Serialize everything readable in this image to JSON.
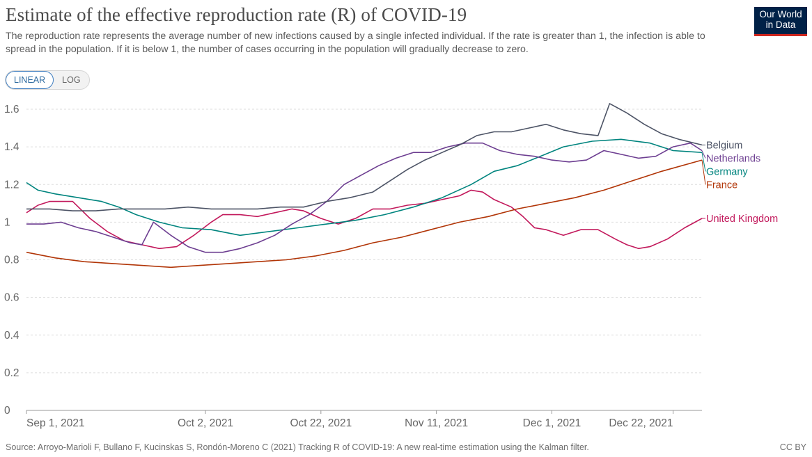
{
  "header": {
    "title": "Estimate of the effective reproduction rate (R) of COVID-19",
    "subtitle": "The reproduction rate represents the average number of new infections caused by a single infected individual. If the rate is greater than 1, the infection is able to spread in the population. If it is below 1, the number of cases occurring in the population will gradually decrease to zero.",
    "logo_line1": "Our World",
    "logo_line2": "in Data"
  },
  "controls": {
    "linear_label": "LINEAR",
    "log_label": "LOG",
    "selected": "linear"
  },
  "footer": {
    "source": "Source: Arroyo-Marioli F, Bullano F, Kucinskas S, Rondón-Moreno C (2021) Tracking R of COVID-19: A new real-time estimation using the Kalman filter.",
    "license": "CC BY"
  },
  "chart_data": {
    "type": "line",
    "x_start": "2021-09-01",
    "x_end": "2021-12-27",
    "x_tick_labels": [
      "Sep 1, 2021",
      "Oct 2, 2021",
      "Oct 22, 2021",
      "Nov 11, 2021",
      "Dec 1, 2021",
      "Dec 22, 2021"
    ],
    "x_tick_dates": [
      "2021-09-01",
      "2021-10-02",
      "2021-10-22",
      "2021-11-11",
      "2021-12-01",
      "2021-12-22"
    ],
    "ylim": [
      0,
      1.6
    ],
    "y_ticks": [
      0,
      0.2,
      0.4,
      0.6,
      0.8,
      1,
      1.2,
      1.4,
      1.6
    ],
    "y_tick_labels": [
      "0",
      "0.2",
      "0.4",
      "0.6",
      "0.8",
      "1",
      "1.2",
      "1.4",
      "1.6"
    ],
    "grid": "horizontal dashed",
    "legend": "series labels at right end of lines",
    "series": [
      {
        "name": "United Kingdom",
        "color": "#c2185b",
        "points": [
          [
            "2021-09-01",
            1.05
          ],
          [
            "2021-09-03",
            1.09
          ],
          [
            "2021-09-05",
            1.11
          ],
          [
            "2021-09-09",
            1.11
          ],
          [
            "2021-09-12",
            1.02
          ],
          [
            "2021-09-15",
            0.95
          ],
          [
            "2021-09-18",
            0.9
          ],
          [
            "2021-09-21",
            0.88
          ],
          [
            "2021-09-24",
            0.86
          ],
          [
            "2021-09-27",
            0.87
          ],
          [
            "2021-09-30",
            0.93
          ],
          [
            "2021-10-03",
            1.0
          ],
          [
            "2021-10-05",
            1.04
          ],
          [
            "2021-10-08",
            1.04
          ],
          [
            "2021-10-11",
            1.03
          ],
          [
            "2021-10-14",
            1.05
          ],
          [
            "2021-10-17",
            1.07
          ],
          [
            "2021-10-19",
            1.06
          ],
          [
            "2021-10-22",
            1.02
          ],
          [
            "2021-10-25",
            0.99
          ],
          [
            "2021-10-28",
            1.02
          ],
          [
            "2021-10-31",
            1.07
          ],
          [
            "2021-11-03",
            1.07
          ],
          [
            "2021-11-06",
            1.09
          ],
          [
            "2021-11-09",
            1.1
          ],
          [
            "2021-11-12",
            1.12
          ],
          [
            "2021-11-15",
            1.14
          ],
          [
            "2021-11-17",
            1.17
          ],
          [
            "2021-11-19",
            1.16
          ],
          [
            "2021-11-21",
            1.12
          ],
          [
            "2021-11-24",
            1.08
          ],
          [
            "2021-11-26",
            1.03
          ],
          [
            "2021-11-28",
            0.97
          ],
          [
            "2021-11-30",
            0.96
          ],
          [
            "2021-12-03",
            0.93
          ],
          [
            "2021-12-06",
            0.96
          ],
          [
            "2021-12-09",
            0.96
          ],
          [
            "2021-12-12",
            0.91
          ],
          [
            "2021-12-14",
            0.88
          ],
          [
            "2021-12-16",
            0.86
          ],
          [
            "2021-12-18",
            0.87
          ],
          [
            "2021-12-21",
            0.91
          ],
          [
            "2021-12-24",
            0.97
          ],
          [
            "2021-12-27",
            1.02
          ]
        ]
      },
      {
        "name": "France",
        "color": "#b13507",
        "points": [
          [
            "2021-09-01",
            0.84
          ],
          [
            "2021-09-06",
            0.81
          ],
          [
            "2021-09-11",
            0.79
          ],
          [
            "2021-09-16",
            0.78
          ],
          [
            "2021-09-21",
            0.77
          ],
          [
            "2021-09-26",
            0.76
          ],
          [
            "2021-10-01",
            0.77
          ],
          [
            "2021-10-06",
            0.78
          ],
          [
            "2021-10-11",
            0.79
          ],
          [
            "2021-10-16",
            0.8
          ],
          [
            "2021-10-21",
            0.82
          ],
          [
            "2021-10-26",
            0.85
          ],
          [
            "2021-10-31",
            0.89
          ],
          [
            "2021-11-05",
            0.92
          ],
          [
            "2021-11-10",
            0.96
          ],
          [
            "2021-11-15",
            1.0
          ],
          [
            "2021-11-20",
            1.03
          ],
          [
            "2021-11-25",
            1.07
          ],
          [
            "2021-11-30",
            1.1
          ],
          [
            "2021-12-05",
            1.13
          ],
          [
            "2021-12-10",
            1.17
          ],
          [
            "2021-12-15",
            1.22
          ],
          [
            "2021-12-20",
            1.27
          ],
          [
            "2021-12-27",
            1.33
          ]
        ]
      },
      {
        "name": "Germany",
        "color": "#00847e",
        "points": [
          [
            "2021-09-01",
            1.21
          ],
          [
            "2021-09-03",
            1.17
          ],
          [
            "2021-09-06",
            1.15
          ],
          [
            "2021-09-10",
            1.13
          ],
          [
            "2021-09-14",
            1.11
          ],
          [
            "2021-09-17",
            1.08
          ],
          [
            "2021-09-20",
            1.04
          ],
          [
            "2021-09-24",
            1.0
          ],
          [
            "2021-09-28",
            0.97
          ],
          [
            "2021-10-03",
            0.96
          ],
          [
            "2021-10-08",
            0.93
          ],
          [
            "2021-10-13",
            0.95
          ],
          [
            "2021-10-18",
            0.97
          ],
          [
            "2021-10-23",
            0.99
          ],
          [
            "2021-10-28",
            1.01
          ],
          [
            "2021-11-02",
            1.04
          ],
          [
            "2021-11-07",
            1.08
          ],
          [
            "2021-11-12",
            1.13
          ],
          [
            "2021-11-17",
            1.2
          ],
          [
            "2021-11-21",
            1.27
          ],
          [
            "2021-11-25",
            1.3
          ],
          [
            "2021-11-29",
            1.35
          ],
          [
            "2021-12-03",
            1.4
          ],
          [
            "2021-12-08",
            1.43
          ],
          [
            "2021-12-13",
            1.44
          ],
          [
            "2021-12-18",
            1.42
          ],
          [
            "2021-12-22",
            1.38
          ],
          [
            "2021-12-27",
            1.37
          ]
        ]
      },
      {
        "name": "Netherlands",
        "color": "#6d3e91",
        "points": [
          [
            "2021-09-01",
            0.99
          ],
          [
            "2021-09-04",
            0.99
          ],
          [
            "2021-09-07",
            1.0
          ],
          [
            "2021-09-10",
            0.97
          ],
          [
            "2021-09-13",
            0.95
          ],
          [
            "2021-09-16",
            0.92
          ],
          [
            "2021-09-19",
            0.89
          ],
          [
            "2021-09-21",
            0.88
          ],
          [
            "2021-09-23",
            1.0
          ],
          [
            "2021-09-26",
            0.93
          ],
          [
            "2021-09-29",
            0.87
          ],
          [
            "2021-10-02",
            0.84
          ],
          [
            "2021-10-05",
            0.84
          ],
          [
            "2021-10-08",
            0.86
          ],
          [
            "2021-10-11",
            0.89
          ],
          [
            "2021-10-14",
            0.93
          ],
          [
            "2021-10-17",
            0.99
          ],
          [
            "2021-10-20",
            1.04
          ],
          [
            "2021-10-23",
            1.11
          ],
          [
            "2021-10-26",
            1.2
          ],
          [
            "2021-10-29",
            1.25
          ],
          [
            "2021-11-01",
            1.3
          ],
          [
            "2021-11-04",
            1.34
          ],
          [
            "2021-11-07",
            1.37
          ],
          [
            "2021-11-10",
            1.37
          ],
          [
            "2021-11-13",
            1.4
          ],
          [
            "2021-11-16",
            1.42
          ],
          [
            "2021-11-19",
            1.42
          ],
          [
            "2021-11-22",
            1.38
          ],
          [
            "2021-11-25",
            1.36
          ],
          [
            "2021-11-28",
            1.35
          ],
          [
            "2021-12-01",
            1.33
          ],
          [
            "2021-12-04",
            1.32
          ],
          [
            "2021-12-07",
            1.33
          ],
          [
            "2021-12-10",
            1.38
          ],
          [
            "2021-12-13",
            1.36
          ],
          [
            "2021-12-16",
            1.34
          ],
          [
            "2021-12-19",
            1.35
          ],
          [
            "2021-12-22",
            1.4
          ],
          [
            "2021-12-25",
            1.42
          ],
          [
            "2021-12-27",
            1.38
          ]
        ]
      },
      {
        "name": "Belgium",
        "color": "#4d5466",
        "points": [
          [
            "2021-09-01",
            1.07
          ],
          [
            "2021-09-05",
            1.07
          ],
          [
            "2021-09-09",
            1.06
          ],
          [
            "2021-09-13",
            1.06
          ],
          [
            "2021-09-17",
            1.07
          ],
          [
            "2021-09-21",
            1.07
          ],
          [
            "2021-09-25",
            1.07
          ],
          [
            "2021-09-29",
            1.08
          ],
          [
            "2021-10-03",
            1.07
          ],
          [
            "2021-10-07",
            1.07
          ],
          [
            "2021-10-11",
            1.07
          ],
          [
            "2021-10-15",
            1.08
          ],
          [
            "2021-10-19",
            1.08
          ],
          [
            "2021-10-23",
            1.11
          ],
          [
            "2021-10-27",
            1.13
          ],
          [
            "2021-10-31",
            1.16
          ],
          [
            "2021-11-03",
            1.22
          ],
          [
            "2021-11-06",
            1.28
          ],
          [
            "2021-11-09",
            1.33
          ],
          [
            "2021-11-12",
            1.37
          ],
          [
            "2021-11-15",
            1.41
          ],
          [
            "2021-11-18",
            1.46
          ],
          [
            "2021-11-21",
            1.48
          ],
          [
            "2021-11-24",
            1.48
          ],
          [
            "2021-11-27",
            1.5
          ],
          [
            "2021-11-30",
            1.52
          ],
          [
            "2021-12-03",
            1.49
          ],
          [
            "2021-12-06",
            1.47
          ],
          [
            "2021-12-09",
            1.46
          ],
          [
            "2021-12-11",
            1.63
          ],
          [
            "2021-12-14",
            1.58
          ],
          [
            "2021-12-17",
            1.52
          ],
          [
            "2021-12-20",
            1.47
          ],
          [
            "2021-12-23",
            1.44
          ],
          [
            "2021-12-27",
            1.41
          ]
        ]
      }
    ]
  }
}
